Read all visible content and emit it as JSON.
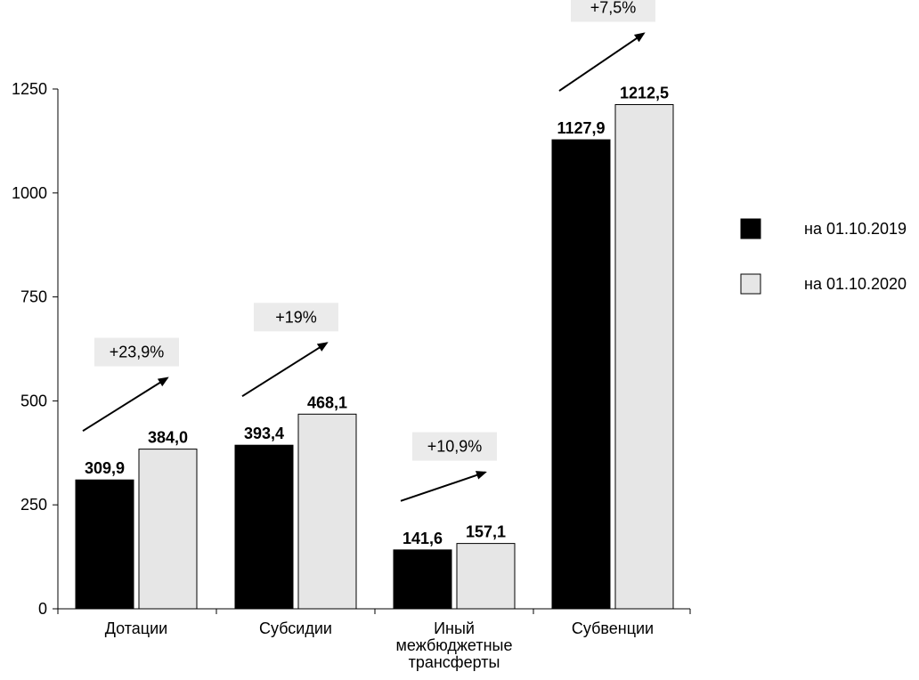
{
  "chart_data": {
    "type": "bar",
    "categories": [
      [
        "Дотации"
      ],
      [
        "Субсидии"
      ],
      [
        "Иный",
        "межбюджетные",
        "трансферты"
      ],
      [
        "Субвенции"
      ]
    ],
    "series": [
      {
        "name": "на 01.10.2019",
        "color": "#000000",
        "values": [
          309.9,
          393.4,
          141.6,
          1127.9
        ],
        "labels": [
          "309,9",
          "393,4",
          "141,6",
          "1127,9"
        ]
      },
      {
        "name": "на 01.10.2020",
        "color": "#e6e6e6",
        "values": [
          384.0,
          468.1,
          157.1,
          1212.5
        ],
        "labels": [
          "384,0",
          "468,1",
          "157,1",
          "1212,5"
        ]
      }
    ],
    "growth_labels": [
      "+23,9%",
      "+19%",
      "+10,9%",
      "+7,5%"
    ],
    "yticks": [
      0,
      250,
      500,
      750,
      1000,
      1250
    ],
    "ylim": [
      0,
      1250
    ],
    "grid": false,
    "legend_position": "right"
  }
}
